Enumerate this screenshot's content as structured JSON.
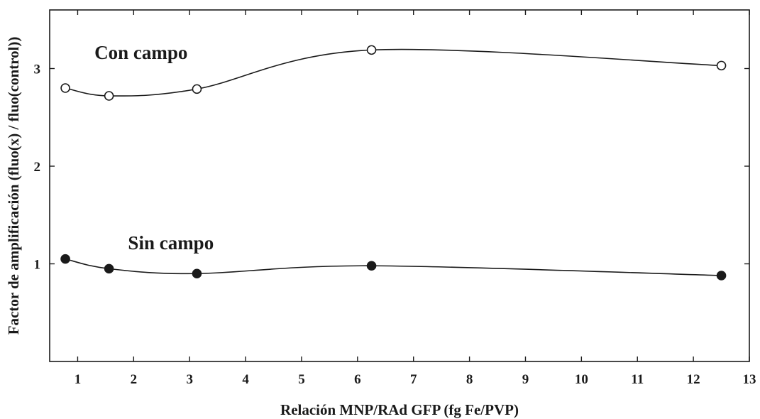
{
  "chart_data": {
    "type": "line",
    "title": "",
    "xlabel": "Relación MNP/RAd GFP (fg Fe/PVP)",
    "ylabel": "Factor de amplificación (fluo(x) / fluo(control))",
    "xlim": [
      0.5,
      13
    ],
    "ylim": [
      0,
      3.6
    ],
    "xticks": [
      1,
      2,
      3,
      4,
      5,
      6,
      7,
      8,
      9,
      10,
      11,
      12,
      13
    ],
    "yticks": [
      1,
      2,
      3
    ],
    "grid": false,
    "series": [
      {
        "name": "Con campo",
        "marker": "open-circle",
        "x": [
          0.78,
          1.56,
          3.13,
          6.25,
          12.5
        ],
        "y": [
          2.8,
          2.72,
          2.79,
          3.19,
          3.03
        ]
      },
      {
        "name": "Sin campo",
        "marker": "filled-circle",
        "x": [
          0.78,
          1.56,
          3.13,
          6.25,
          12.5
        ],
        "y": [
          1.05,
          0.95,
          0.9,
          0.98,
          0.88
        ]
      }
    ],
    "colors": {
      "ink": "#1a1a1a",
      "open_fill": "#ffffff",
      "filled": "#1a1a1a"
    }
  }
}
